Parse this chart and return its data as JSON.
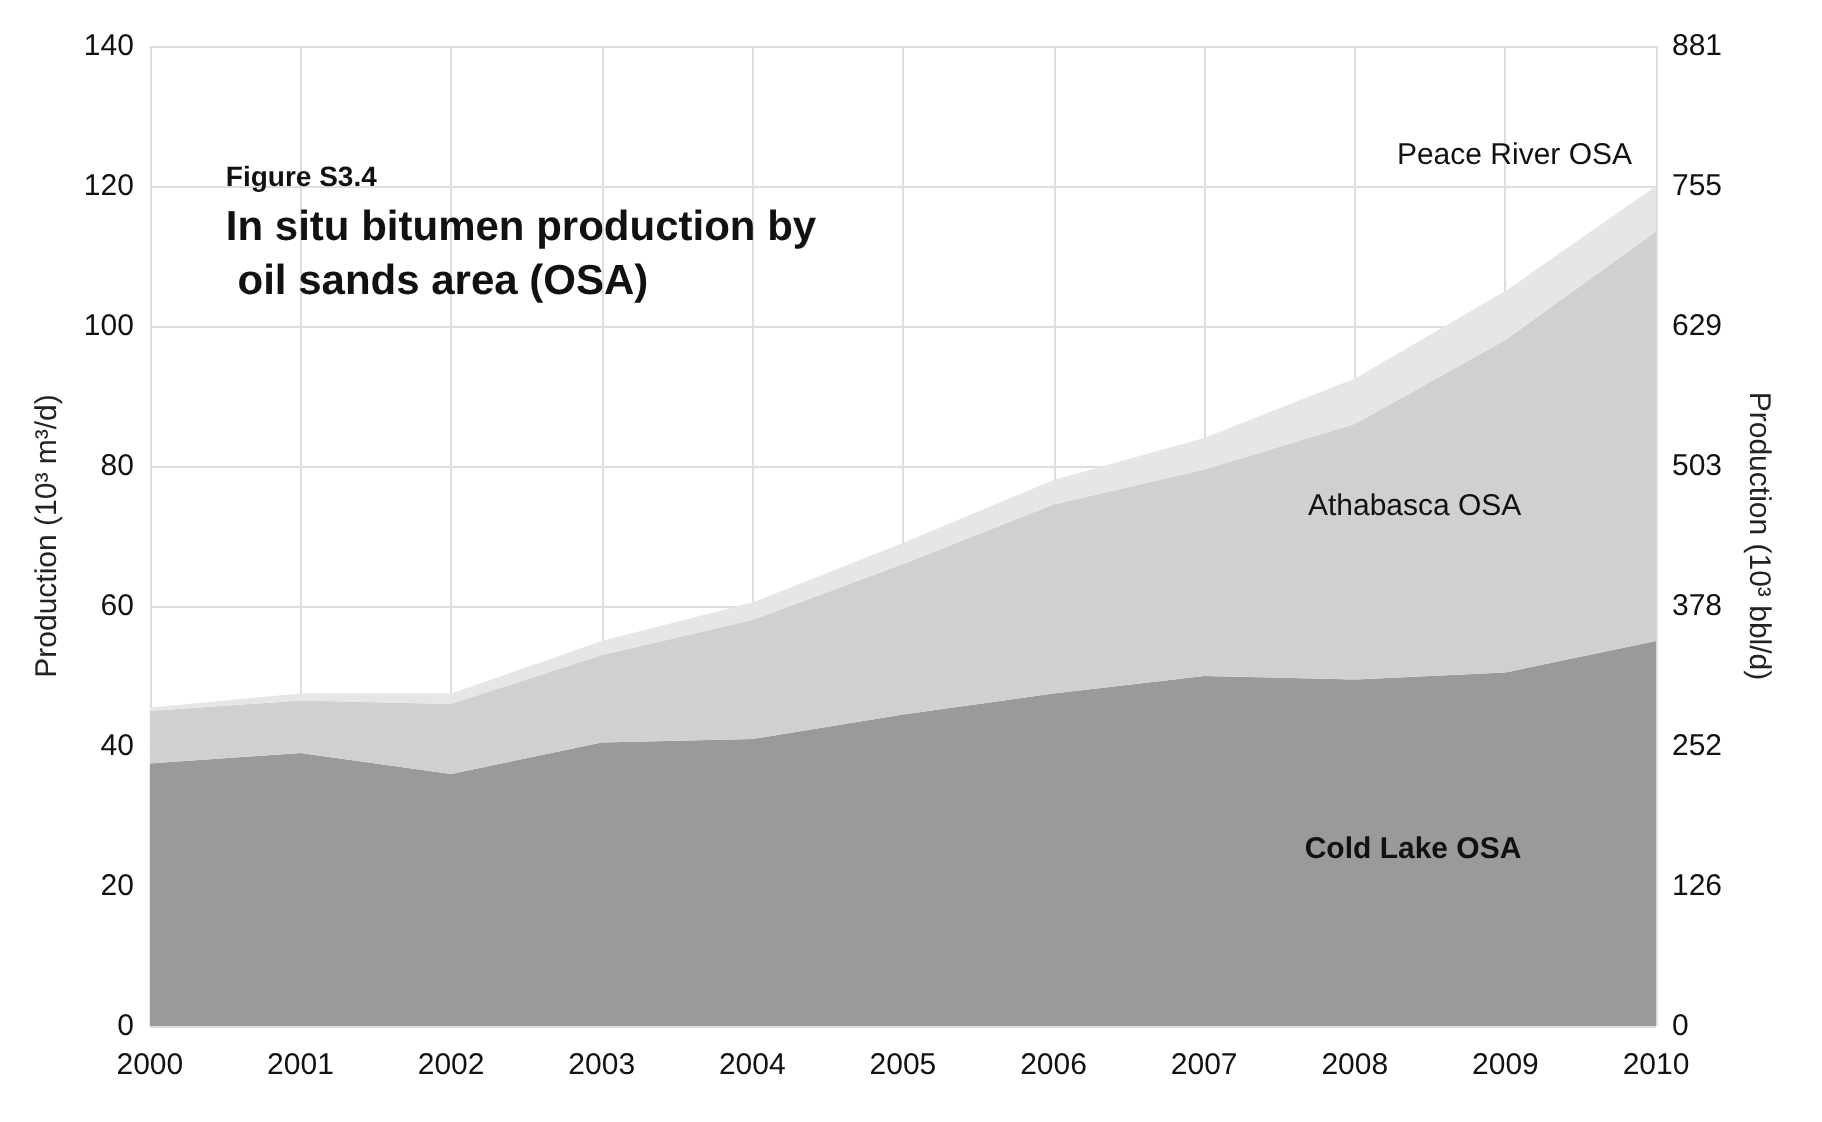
{
  "chart_data": {
    "type": "area",
    "stacked": true,
    "subtitle": "Figure S3.4",
    "title": "In situ bitumen production by oil sands area (OSA)",
    "ylabel": "Production (10³ m³/d)",
    "y2label": "Production (10³ bbl/d)",
    "categories": [
      "2000",
      "2001",
      "2002",
      "2003",
      "2004",
      "2005",
      "2006",
      "2007",
      "2008",
      "2009",
      "2010"
    ],
    "series": [
      {
        "name": "Cold Lake OSA",
        "color": "#9a9a9a",
        "values": [
          37.5,
          39,
          36,
          40.5,
          41,
          44.5,
          47.5,
          50,
          49.5,
          50.5,
          55
        ]
      },
      {
        "name": "Athabasca OSA",
        "color": "#d0d0d0",
        "values": [
          7.5,
          7.5,
          10,
          12.5,
          17,
          21.5,
          27,
          29.5,
          36.5,
          47.5,
          58.5
        ]
      },
      {
        "name": "Peace River OSA",
        "color": "#e6e6e6",
        "values": [
          0.5,
          1,
          1.5,
          2,
          2.5,
          3,
          3.5,
          4.5,
          6.5,
          7,
          6.5
        ]
      }
    ],
    "ylim": [
      0,
      140
    ],
    "yticks": [
      0,
      20,
      40,
      60,
      80,
      100,
      120,
      140
    ],
    "y2lim": [
      0,
      881
    ],
    "y2ticks": [
      0,
      126,
      252,
      378,
      503,
      629,
      755,
      881
    ],
    "grid": true,
    "legend": false
  }
}
